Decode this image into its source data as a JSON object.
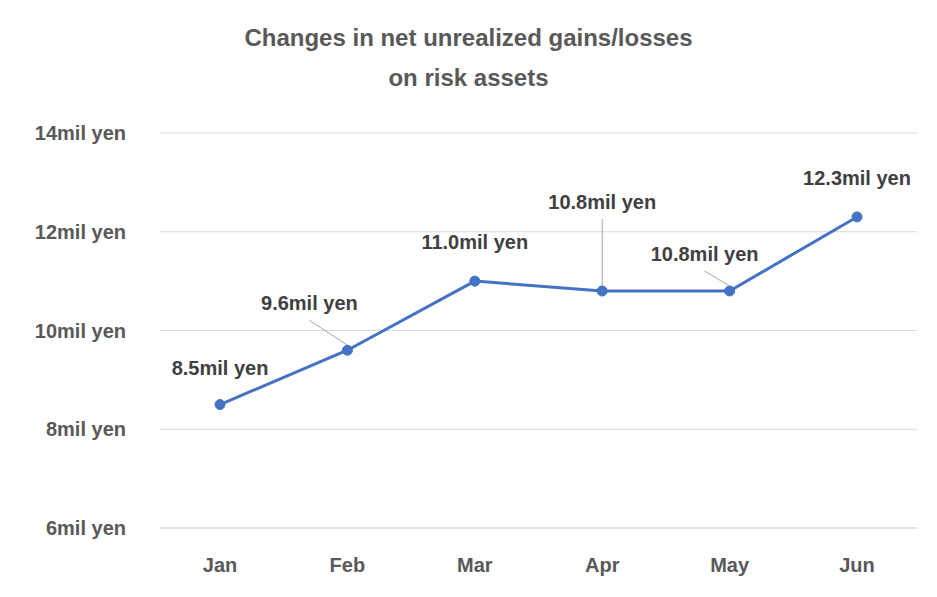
{
  "chart_data": {
    "type": "line",
    "title": "Changes in net unrealized gains/losses on risk assets",
    "categories": [
      "Jan",
      "Feb",
      "Mar",
      "Apr",
      "May",
      "Jun"
    ],
    "values": [
      8.5,
      9.6,
      11.0,
      10.8,
      10.8,
      12.3
    ],
    "value_labels": [
      "8.5mil yen",
      "9.6mil yen",
      "11.0mil yen",
      "10.8mil yen",
      "10.8mil yen",
      "12.3mil yen"
    ],
    "color": "#4472c4",
    "ylim": [
      6,
      14
    ],
    "yticks": [
      {
        "value": 6,
        "label": "6mil yen"
      },
      {
        "value": 8,
        "label": "8mil yen"
      },
      {
        "value": 10,
        "label": "10mil yen"
      },
      {
        "value": 12,
        "label": "12mil yen"
      },
      {
        "value": 14,
        "label": "14mil yen"
      }
    ],
    "grid": true,
    "data_labels": true,
    "marker": "circle"
  }
}
